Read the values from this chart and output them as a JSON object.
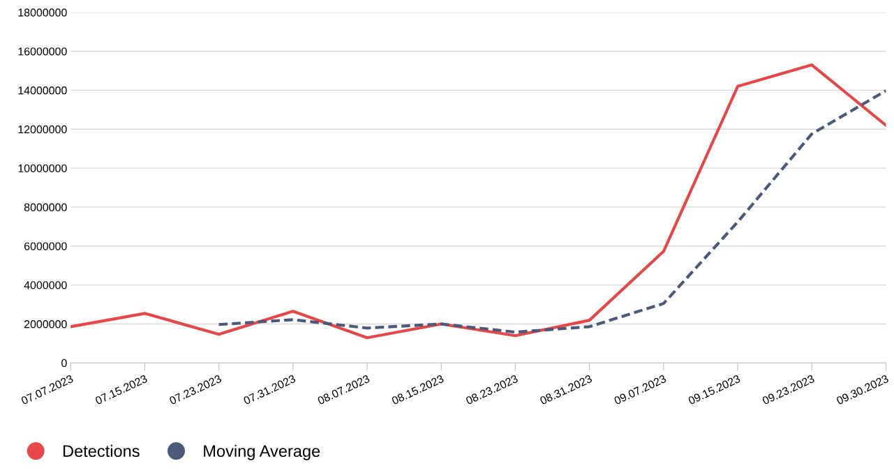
{
  "chart_data": {
    "type": "line",
    "categories": [
      "07.07.2023",
      "07.15.2023",
      "07.23.2023",
      "07.31.2023",
      "08.07.2023",
      "08.15.2023",
      "08.23.2023",
      "08.31.2023",
      "09.07.2023",
      "09.15.2023",
      "09.23.2023",
      "09.30.2023"
    ],
    "series": [
      {
        "name": "Detections",
        "color": "#e8474a",
        "line_style": "solid",
        "values": [
          1860000,
          2540000,
          1470000,
          2650000,
          1290000,
          2000000,
          1400000,
          2190000,
          5730000,
          14200000,
          15300000,
          12200000
        ]
      },
      {
        "name": "Moving Average",
        "color": "#4a5a78",
        "line_style": "dashed",
        "values": [
          null,
          null,
          1970000,
          2220000,
          1790000,
          2000000,
          1580000,
          1860000,
          3050000,
          7240000,
          11760000,
          13980000
        ]
      }
    ],
    "ylim": [
      0,
      18000000
    ],
    "yticks": [
      0,
      2000000,
      4000000,
      6000000,
      8000000,
      10000000,
      12000000,
      14000000,
      16000000,
      18000000
    ],
    "grid": "y",
    "legend": "bottom left",
    "marker": "none"
  }
}
